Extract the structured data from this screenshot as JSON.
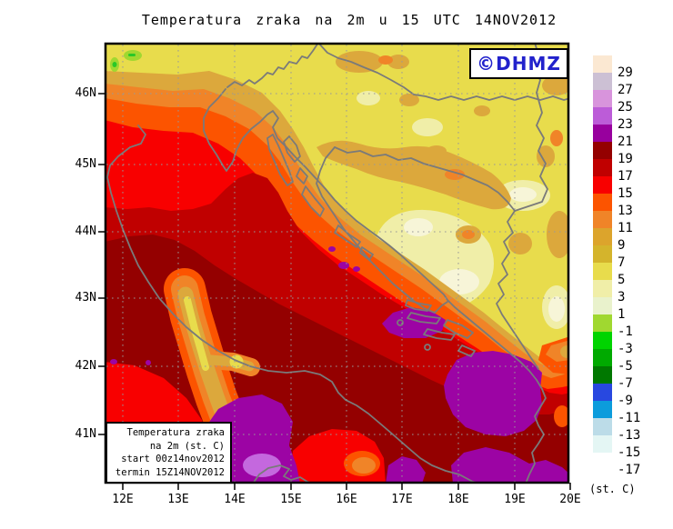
{
  "title": "Temperatura zraka na 2m u 15 UTC 14NOV2012",
  "watermark": "©DHMZ",
  "watermark_color": "#2222CC",
  "info_box": {
    "lines": [
      "Temperatura zraka",
      "na 2m (st. C)",
      "start 00z14nov2012",
      "termin 15Z14NOV2012"
    ]
  },
  "axes": {
    "lat_labels": [
      "46N",
      "45N",
      "44N",
      "43N",
      "42N",
      "41N"
    ],
    "lon_labels": [
      "12E",
      "13E",
      "14E",
      "15E",
      "16E",
      "17E",
      "18E",
      "19E",
      "20E"
    ]
  },
  "legend": {
    "unit_label": "(st. C)",
    "entries": [
      {
        "label": "29",
        "color": "#FBE8D2"
      },
      {
        "label": "27",
        "color": "#CCC0D4"
      },
      {
        "label": "25",
        "color": "#D894DC"
      },
      {
        "label": "23",
        "color": "#BC5CD8"
      },
      {
        "label": "21",
        "color": "#98009E"
      },
      {
        "label": "19",
        "color": "#940000"
      },
      {
        "label": "17",
        "color": "#C00000"
      },
      {
        "label": "15",
        "color": "#F80000"
      },
      {
        "label": "13",
        "color": "#FC5400"
      },
      {
        "label": "11",
        "color": "#F08428"
      },
      {
        "label": "9",
        "color": "#DCA42C"
      },
      {
        "label": "7",
        "color": "#D4B42C"
      },
      {
        "label": "5",
        "color": "#E8DC4C"
      },
      {
        "label": "3",
        "color": "#F0EEA8"
      },
      {
        "label": "1",
        "color": "#E9F2CC"
      },
      {
        "label": "-1",
        "color": "#A0D830"
      },
      {
        "label": "-3",
        "color": "#00D400"
      },
      {
        "label": "-5",
        "color": "#00AA00"
      },
      {
        "label": "-7",
        "color": "#007800"
      },
      {
        "label": "-9",
        "color": "#2848E0"
      },
      {
        "label": "-11",
        "color": "#0C9CDC"
      },
      {
        "label": "-13",
        "color": "#BCDCE8"
      },
      {
        "label": "-15",
        "color": "#E4F6F4"
      },
      {
        "label": "-17",
        "color": "#FFFFFF"
      }
    ]
  },
  "palette": {
    "yellow": "#E8DC4C",
    "paleYellow": "#F0EEA8",
    "cream": "#F7F5D8",
    "goldenrod": "#DCA83C",
    "orange": "#F08428",
    "orangeRed": "#FC5400",
    "red": "#F80000",
    "darkRed": "#C00000",
    "maroon": "#940000",
    "purple": "#9C04A4",
    "lightPurple": "#C468DE",
    "yellowGreen": "#A0D830",
    "green": "#2AC828",
    "coast": "#7A7A7A",
    "grid": "#999999",
    "frame": "#000000"
  }
}
